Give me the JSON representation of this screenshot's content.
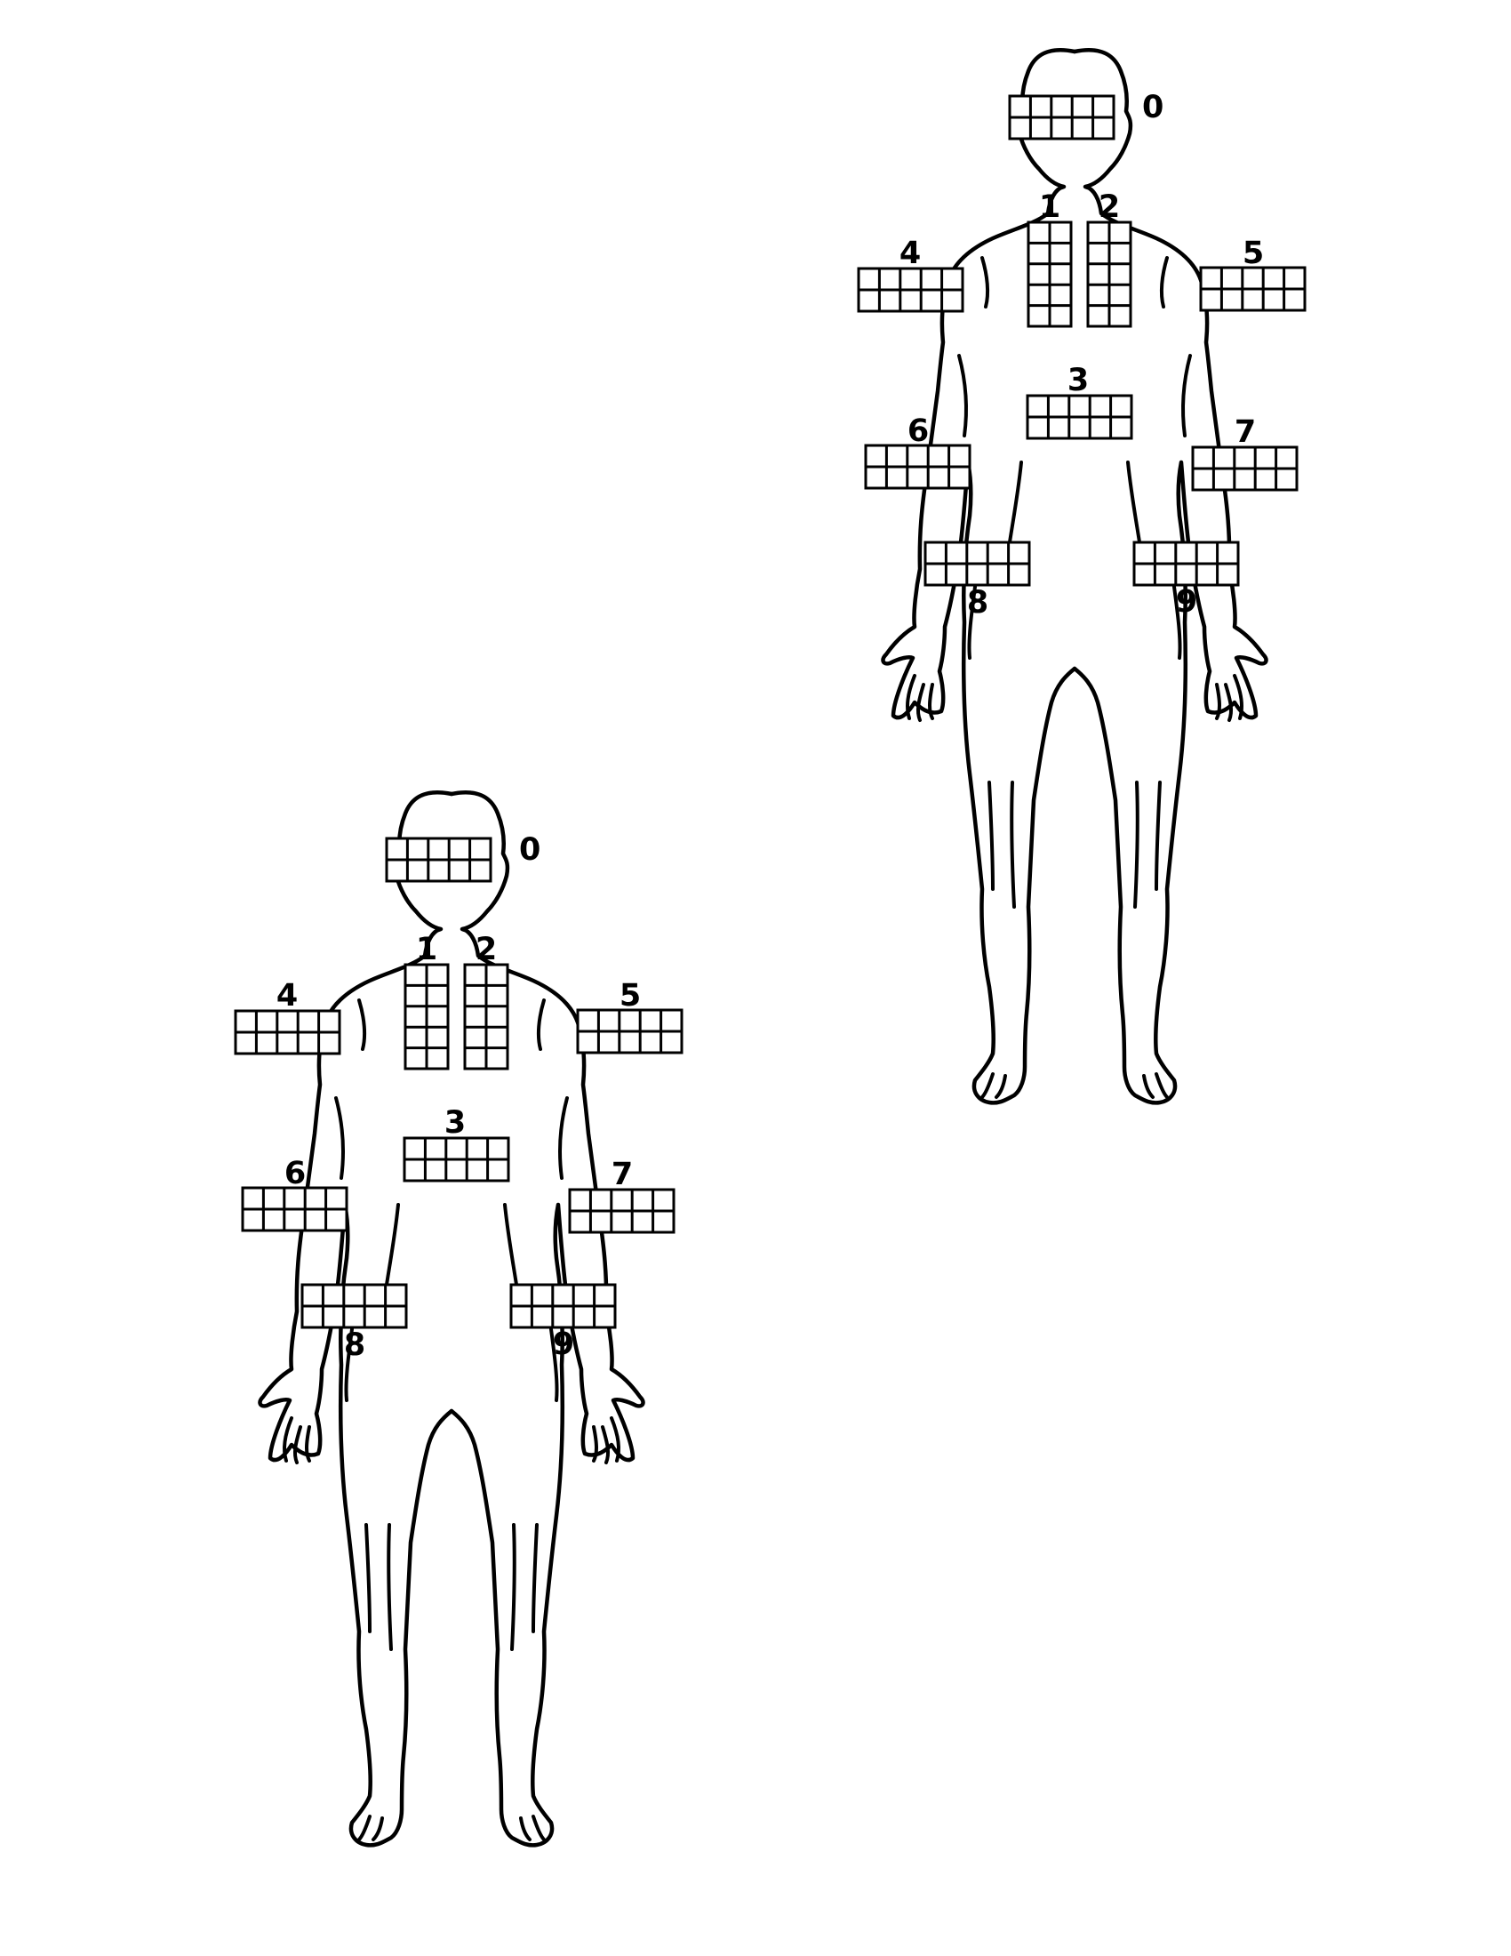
{
  "figures": [
    {
      "name": "figure-top-right",
      "zones": [
        {
          "label": "0",
          "cells": 5,
          "orientation": "horizontal"
        },
        {
          "label": "1",
          "cells": 5,
          "orientation": "vertical"
        },
        {
          "label": "2",
          "cells": 5,
          "orientation": "vertical"
        },
        {
          "label": "3",
          "cells": 5,
          "orientation": "horizontal"
        },
        {
          "label": "4",
          "cells": 5,
          "orientation": "horizontal"
        },
        {
          "label": "5",
          "cells": 5,
          "orientation": "horizontal"
        },
        {
          "label": "6",
          "cells": 5,
          "orientation": "horizontal"
        },
        {
          "label": "7",
          "cells": 5,
          "orientation": "horizontal"
        },
        {
          "label": "8",
          "cells": 5,
          "orientation": "horizontal"
        },
        {
          "label": "9",
          "cells": 5,
          "orientation": "horizontal"
        }
      ]
    },
    {
      "name": "figure-bottom-left",
      "zones": [
        {
          "label": "0",
          "cells": 5,
          "orientation": "horizontal"
        },
        {
          "label": "1",
          "cells": 5,
          "orientation": "vertical"
        },
        {
          "label": "2",
          "cells": 5,
          "orientation": "vertical"
        },
        {
          "label": "3",
          "cells": 5,
          "orientation": "horizontal"
        },
        {
          "label": "4",
          "cells": 5,
          "orientation": "horizontal"
        },
        {
          "label": "5",
          "cells": 5,
          "orientation": "horizontal"
        },
        {
          "label": "6",
          "cells": 5,
          "orientation": "horizontal"
        },
        {
          "label": "7",
          "cells": 5,
          "orientation": "horizontal"
        },
        {
          "label": "8",
          "cells": 5,
          "orientation": "horizontal"
        },
        {
          "label": "9",
          "cells": 5,
          "orientation": "horizontal"
        }
      ]
    }
  ],
  "colors": {
    "line": "#000000",
    "background": "#ffffff"
  }
}
